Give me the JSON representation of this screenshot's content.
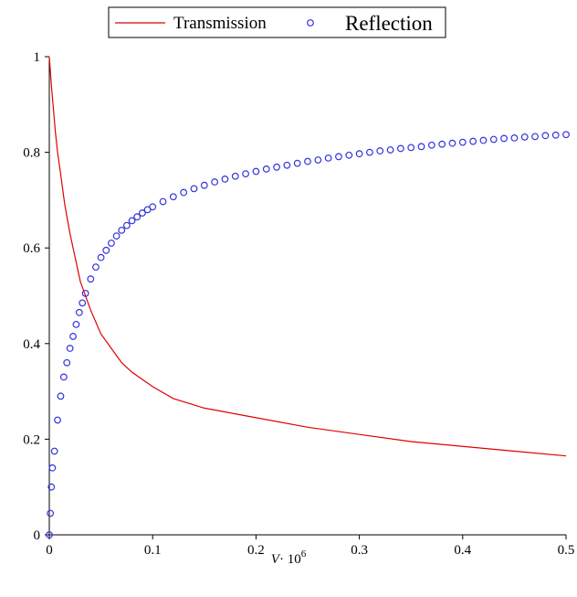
{
  "chart_data": {
    "type": "line",
    "title": "",
    "xlabel": "V",
    "xlabel_suffix": "· 10",
    "xlabel_exponent": "6",
    "ylabel": "",
    "xlim": [
      0,
      0.5
    ],
    "ylim": [
      0,
      1
    ],
    "x_ticks": [
      "0",
      "0.1",
      "0.2",
      "0.3",
      "0.4",
      "0.5"
    ],
    "y_ticks": [
      "0",
      "0.2",
      "0.4",
      "0.6",
      "0.8",
      "1"
    ],
    "grid": false,
    "legend": {
      "placement": "top-center",
      "boxed": true
    },
    "series": [
      {
        "name": "Transmission",
        "style": "solid-line",
        "color": "#e00000",
        "x": [
          0,
          0.001,
          0.002,
          0.004,
          0.006,
          0.008,
          0.01,
          0.015,
          0.02,
          0.025,
          0.03,
          0.04,
          0.05,
          0.06,
          0.07,
          0.08,
          0.1,
          0.12,
          0.15,
          0.2,
          0.25,
          0.3,
          0.35,
          0.4,
          0.45,
          0.5
        ],
        "y": [
          1.0,
          0.97,
          0.94,
          0.89,
          0.84,
          0.8,
          0.77,
          0.69,
          0.63,
          0.58,
          0.53,
          0.47,
          0.42,
          0.39,
          0.36,
          0.34,
          0.31,
          0.285,
          0.265,
          0.245,
          0.225,
          0.21,
          0.195,
          0.185,
          0.175,
          0.165
        ]
      },
      {
        "name": "Reflection",
        "style": "circle-markers",
        "color": "#3333dd",
        "x": [
          0,
          0.001,
          0.002,
          0.003,
          0.005,
          0.008,
          0.011,
          0.014,
          0.017,
          0.02,
          0.023,
          0.026,
          0.029,
          0.032,
          0.035,
          0.04,
          0.045,
          0.05,
          0.055,
          0.06,
          0.065,
          0.07,
          0.075,
          0.08,
          0.085,
          0.09,
          0.095,
          0.1,
          0.11,
          0.12,
          0.13,
          0.14,
          0.15,
          0.16,
          0.17,
          0.18,
          0.19,
          0.2,
          0.21,
          0.22,
          0.23,
          0.24,
          0.25,
          0.26,
          0.27,
          0.28,
          0.29,
          0.3,
          0.31,
          0.32,
          0.33,
          0.34,
          0.35,
          0.36,
          0.37,
          0.38,
          0.39,
          0.4,
          0.41,
          0.42,
          0.43,
          0.44,
          0.45,
          0.46,
          0.47,
          0.48,
          0.49,
          0.5
        ],
        "y": [
          0.0,
          0.045,
          0.1,
          0.14,
          0.175,
          0.24,
          0.29,
          0.33,
          0.36,
          0.39,
          0.415,
          0.44,
          0.465,
          0.485,
          0.505,
          0.535,
          0.56,
          0.58,
          0.595,
          0.61,
          0.625,
          0.637,
          0.647,
          0.657,
          0.665,
          0.673,
          0.68,
          0.686,
          0.697,
          0.707,
          0.716,
          0.724,
          0.731,
          0.738,
          0.744,
          0.75,
          0.755,
          0.76,
          0.765,
          0.769,
          0.773,
          0.777,
          0.781,
          0.784,
          0.788,
          0.791,
          0.794,
          0.797,
          0.8,
          0.803,
          0.805,
          0.808,
          0.81,
          0.812,
          0.815,
          0.817,
          0.819,
          0.821,
          0.823,
          0.825,
          0.827,
          0.829,
          0.83,
          0.832,
          0.833,
          0.835,
          0.836,
          0.837
        ]
      }
    ]
  }
}
